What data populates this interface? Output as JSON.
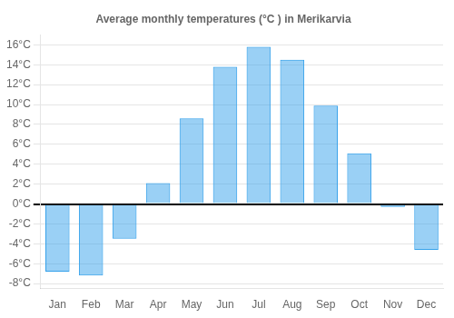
{
  "chart_data": {
    "type": "bar",
    "title": "Average monthly temperatures (°C ) in Merikarvia",
    "categories": [
      "Jan",
      "Feb",
      "Mar",
      "Apr",
      "May",
      "Jun",
      "Jul",
      "Aug",
      "Sep",
      "Oct",
      "Nov",
      "Dec"
    ],
    "values": [
      -6.8,
      -7.2,
      -3.5,
      2.1,
      8.6,
      13.8,
      15.8,
      14.5,
      9.9,
      5.1,
      -0.3,
      -4.6
    ],
    "ylim": [
      -8.5,
      17
    ],
    "yticks": [
      {
        "value": -8,
        "label": "-8°C"
      },
      {
        "value": -6,
        "label": "-6°C"
      },
      {
        "value": -4,
        "label": "-4°C"
      },
      {
        "value": -2,
        "label": "-2°C"
      },
      {
        "value": 0,
        "label": "0°C"
      },
      {
        "value": 2,
        "label": "2°C"
      },
      {
        "value": 4,
        "label": "4°C"
      },
      {
        "value": 6,
        "label": "6°C"
      },
      {
        "value": 8,
        "label": "8°C"
      },
      {
        "value": 10,
        "label": "10°C"
      },
      {
        "value": 12,
        "label": "12°C"
      },
      {
        "value": 14,
        "label": "14°C"
      },
      {
        "value": 16,
        "label": "16°C"
      }
    ],
    "grid": true
  }
}
